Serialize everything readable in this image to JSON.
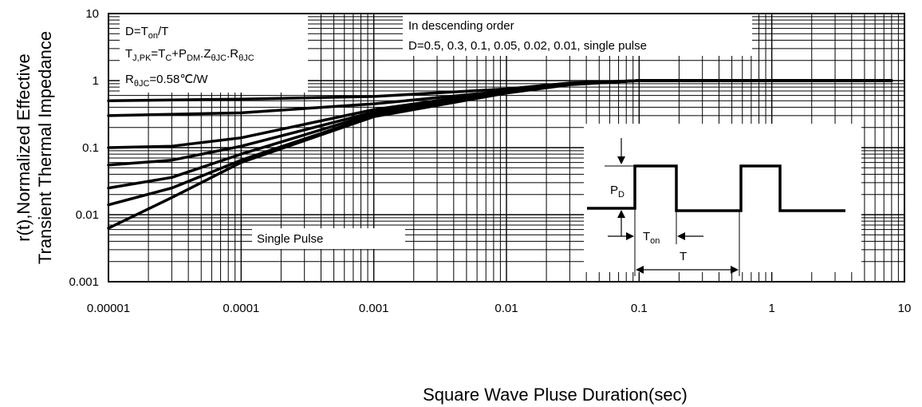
{
  "chart_data": {
    "type": "line",
    "xscale": "log",
    "yscale": "log",
    "xlim": [
      1e-05,
      10
    ],
    "ylim": [
      0.001,
      10
    ],
    "x_ticks": [
      {
        "v": 1e-05,
        "label": "0.00001"
      },
      {
        "v": 0.0001,
        "label": "0.0001"
      },
      {
        "v": 0.001,
        "label": "0.001"
      },
      {
        "v": 0.01,
        "label": "0.01"
      },
      {
        "v": 0.1,
        "label": "0.1"
      },
      {
        "v": 1,
        "label": "1"
      },
      {
        "v": 10,
        "label": "10"
      }
    ],
    "y_ticks": [
      {
        "v": 10,
        "label": "10"
      },
      {
        "v": 1,
        "label": "1"
      },
      {
        "v": 0.1,
        "label": "0.1"
      },
      {
        "v": 0.01,
        "label": "0.01"
      },
      {
        "v": 0.001,
        "label": "0.001"
      }
    ],
    "ylabel_line1": "r(t),Normalized Effective",
    "ylabel_line2": "Transient Thermal Impedance",
    "xlabel": "Square Wave Pluse Duration(sec)",
    "grid": true,
    "series": [
      {
        "d": 0.5,
        "points": [
          [
            1e-05,
            0.5
          ],
          [
            0.0001,
            0.53
          ],
          [
            0.001,
            0.58
          ],
          [
            0.01,
            0.75
          ],
          [
            0.03,
            0.92
          ],
          [
            0.1,
            1.0
          ],
          [
            1,
            1.0
          ],
          [
            8,
            1.0
          ]
        ]
      },
      {
        "d": 0.3,
        "points": [
          [
            1e-05,
            0.3
          ],
          [
            0.0001,
            0.33
          ],
          [
            0.001,
            0.45
          ],
          [
            0.01,
            0.7
          ],
          [
            0.03,
            0.9
          ],
          [
            0.1,
            1.0
          ],
          [
            1,
            1.0
          ],
          [
            8,
            1.0
          ]
        ]
      },
      {
        "d": 0.1,
        "points": [
          [
            1e-05,
            0.1
          ],
          [
            3e-05,
            0.105
          ],
          [
            0.0001,
            0.14
          ],
          [
            0.001,
            0.37
          ],
          [
            0.01,
            0.7
          ],
          [
            0.03,
            0.9
          ],
          [
            0.1,
            1.0
          ],
          [
            1,
            1.0
          ],
          [
            8,
            1.0
          ]
        ]
      },
      {
        "d": 0.05,
        "points": [
          [
            1e-05,
            0.055
          ],
          [
            3e-05,
            0.065
          ],
          [
            0.0001,
            0.105
          ],
          [
            0.001,
            0.34
          ],
          [
            0.01,
            0.68
          ],
          [
            0.03,
            0.9
          ],
          [
            0.1,
            1.0
          ],
          [
            1,
            1.0
          ],
          [
            8,
            1.0
          ]
        ]
      },
      {
        "d": 0.02,
        "points": [
          [
            1e-05,
            0.025
          ],
          [
            3e-05,
            0.036
          ],
          [
            0.0001,
            0.08
          ],
          [
            0.001,
            0.32
          ],
          [
            0.01,
            0.67
          ],
          [
            0.03,
            0.88
          ],
          [
            0.1,
            1.0
          ],
          [
            1,
            1.0
          ],
          [
            8,
            1.0
          ]
        ]
      },
      {
        "d": 0.01,
        "points": [
          [
            1e-05,
            0.014
          ],
          [
            3e-05,
            0.025
          ],
          [
            0.0001,
            0.065
          ],
          [
            0.001,
            0.3
          ],
          [
            0.01,
            0.66
          ],
          [
            0.03,
            0.88
          ],
          [
            0.1,
            1.0
          ],
          [
            1,
            1.0
          ],
          [
            8,
            1.0
          ]
        ]
      },
      {
        "d": 0,
        "points": [
          [
            1e-05,
            0.0063
          ],
          [
            3e-05,
            0.018
          ],
          [
            0.0001,
            0.06
          ],
          [
            0.001,
            0.29
          ],
          [
            0.01,
            0.65
          ],
          [
            0.03,
            0.87
          ],
          [
            0.1,
            1.0
          ],
          [
            1,
            1.0
          ],
          [
            8,
            1.0
          ]
        ]
      }
    ],
    "annotations": {
      "box1_line1": "D=T",
      "box1_line1_sub": "on",
      "box1_line1_end": "/T",
      "box1_line2": "T",
      "box1_line2_sub": "J,PK",
      "box1_line2_mid": "=T",
      "box1_line2_sub2": "C",
      "box1_line2_mid2": "+P",
      "box1_line2_sub3": "DM",
      "box1_line2_mid3": ".Z",
      "box1_line2_sub4": "θJC",
      "box1_line2_mid4": ".R",
      "box1_line2_sub5": "θJC",
      "box1_line3": "R",
      "box1_line3_sub": "θJC",
      "box1_line3_end": "=0.58℃/W",
      "box2_line1": "In descending order",
      "box2_line2": "D=0.5, 0.3, 0.1, 0.05, 0.02, 0.01, single pulse",
      "single_pulse": "Single Pulse",
      "inset_pd": "P",
      "inset_pd_sub": "D",
      "inset_ton": "T",
      "inset_ton_sub": "on",
      "inset_t": "T"
    }
  }
}
